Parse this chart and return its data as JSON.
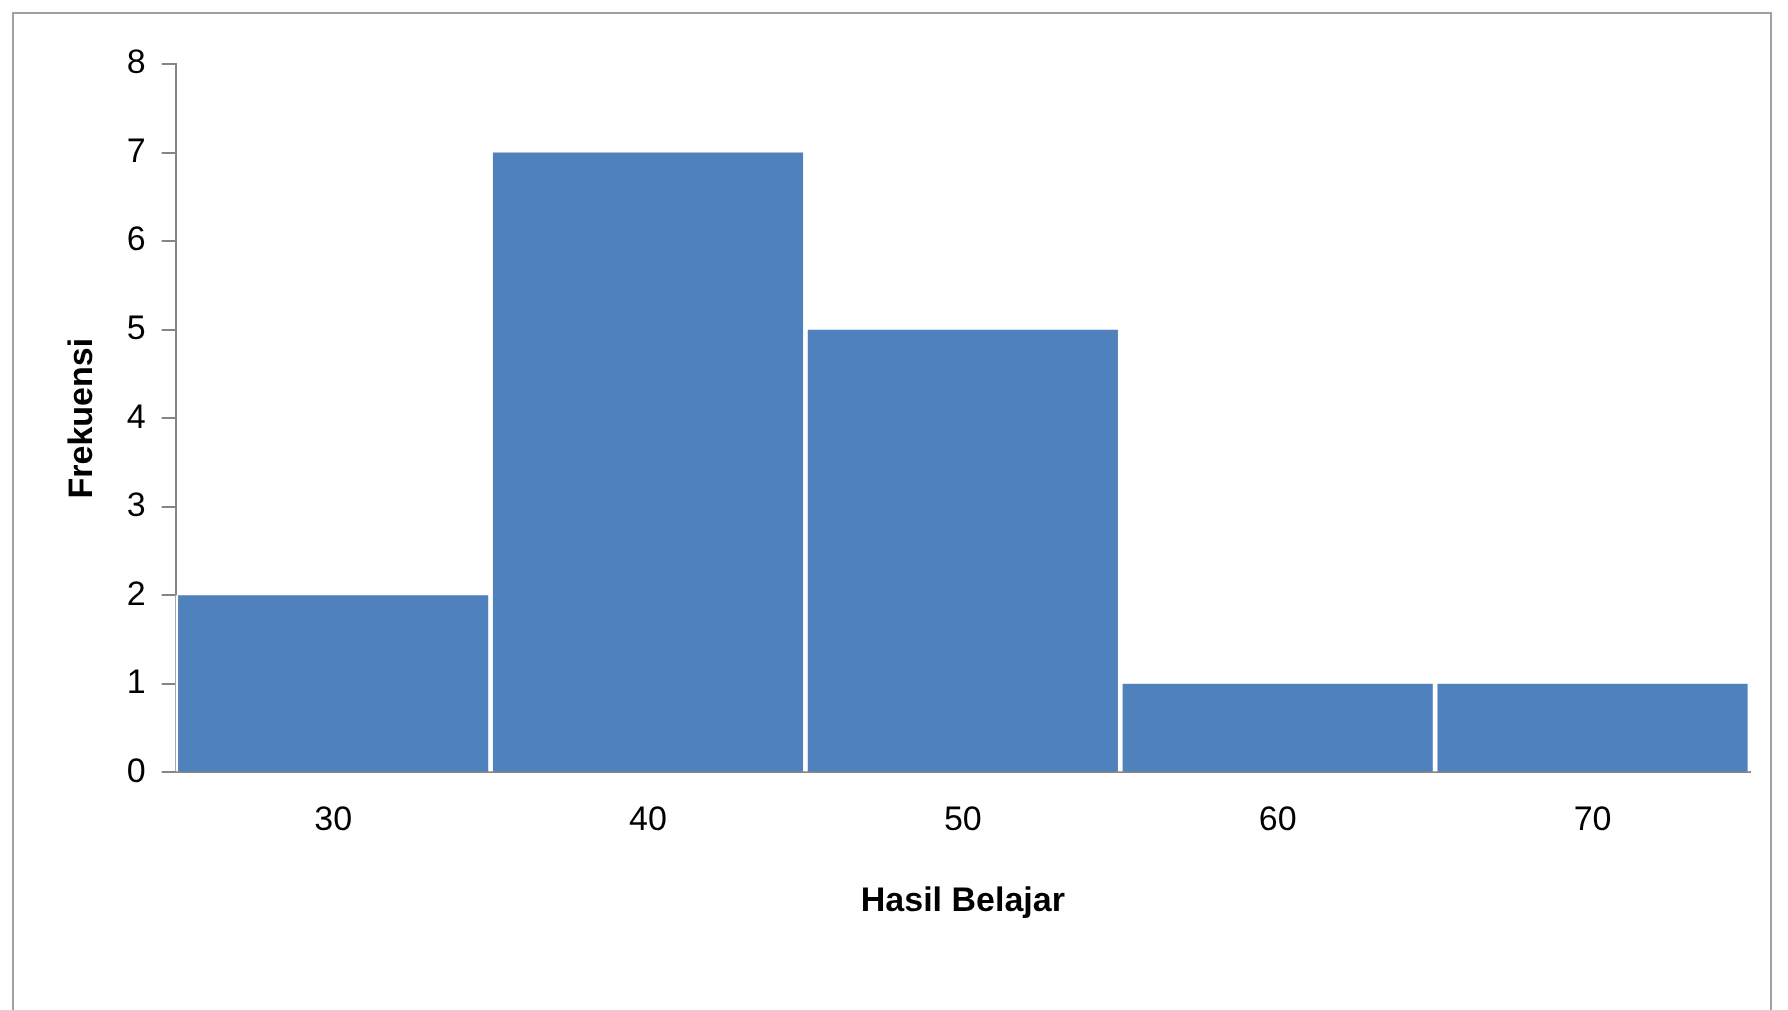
{
  "chart_data": {
    "type": "bar",
    "xlabel": "Hasil Belajar",
    "ylabel": "Frekuensi",
    "categories": [
      "30",
      "40",
      "50",
      "60",
      "70"
    ],
    "values": [
      2,
      7,
      5,
      1,
      1
    ],
    "color": "#4f81bd",
    "ylim": [
      0,
      8
    ],
    "yticks": [
      0,
      1,
      2,
      3,
      4,
      5,
      6,
      7,
      8
    ],
    "grid": false,
    "legend": false
  }
}
